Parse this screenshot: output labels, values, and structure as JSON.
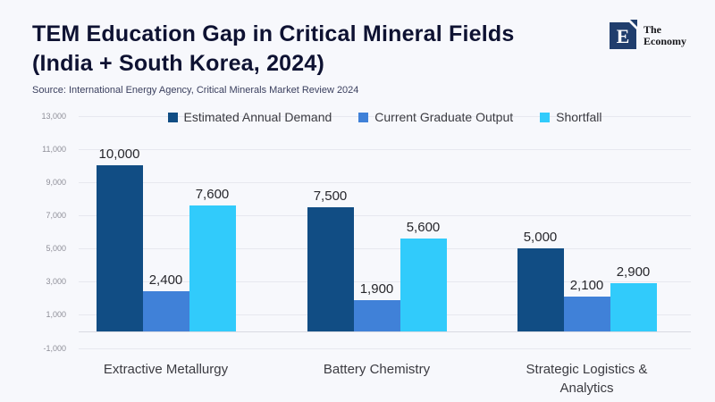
{
  "header": {
    "title_line1": "TEM Education Gap in Critical Mineral Fields",
    "title_line2": "(India + South Korea, 2024)",
    "source": "Source:  International Energy Agency, Critical Minerals Market Review 2024"
  },
  "logo": {
    "letter": "E",
    "name_line1": "The",
    "name_line2": "Economy"
  },
  "colors": {
    "background": "#f7f8fc",
    "title": "#0e1232",
    "gridline": "#e7e8ef",
    "zero_axis": "#d9dae2",
    "demand_bar": "#114d84",
    "output_bar": "#4081d8",
    "shortfall_bar": "#31cbfb",
    "logo_navy": "#203e6d"
  },
  "chart_data": {
    "type": "bar",
    "title": "TEM Education Gap in Critical Mineral Fields (India + South Korea, 2024)",
    "categories": [
      "Extractive Metallurgy",
      "Battery Chemistry",
      "Strategic Logistics & Analytics"
    ],
    "series": [
      {
        "name": "Estimated Annual Demand",
        "color": "#114d84",
        "values": [
          10000,
          7500,
          5000
        ]
      },
      {
        "name": "Current Graduate Output",
        "color": "#4081d8",
        "values": [
          2400,
          1900,
          2100
        ]
      },
      {
        "name": "Shortfall",
        "color": "#31cbfb",
        "values": [
          7600,
          5600,
          2900
        ]
      }
    ],
    "value_labels": [
      [
        "10,000",
        "7,500",
        "5,000"
      ],
      [
        "2,400",
        "1,900",
        "2,100"
      ],
      [
        "7,600",
        "5,600",
        "2,900"
      ]
    ],
    "xlabel": "",
    "ylabel": "",
    "ylim": [
      -1000,
      13000
    ],
    "y_ticks": [
      13000,
      11000,
      9000,
      7000,
      5000,
      3000,
      1000,
      -1000
    ],
    "grid": true,
    "legend_position": "top"
  }
}
